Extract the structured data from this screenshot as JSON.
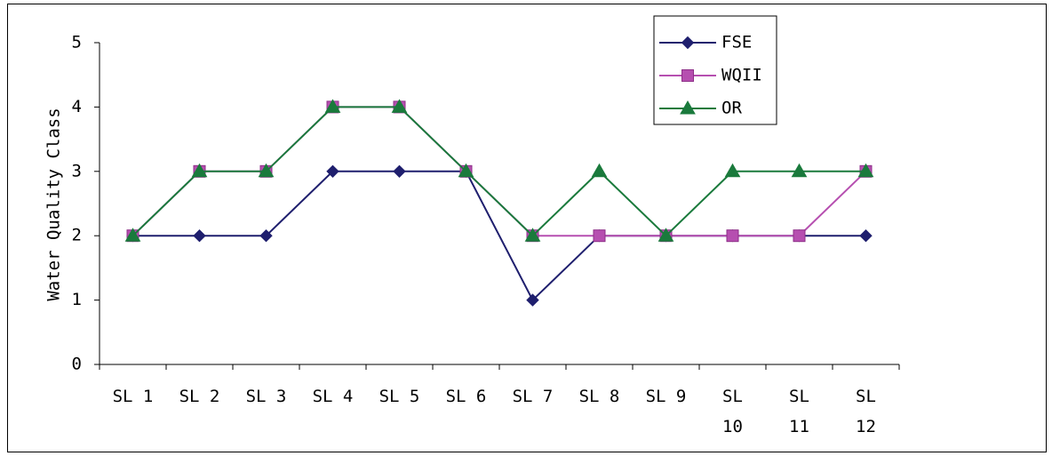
{
  "chart_data": {
    "type": "line",
    "title": "",
    "xlabel": "",
    "ylabel": "Water Quality Class",
    "ylim": [
      0,
      5
    ],
    "yticks": [
      "0",
      "1",
      "2",
      "3",
      "4",
      "5"
    ],
    "categories": [
      [
        "SL",
        "1"
      ],
      [
        "SL",
        "2"
      ],
      [
        "SL",
        "3"
      ],
      [
        "SL",
        "4"
      ],
      [
        "SL",
        "5"
      ],
      [
        "SL",
        "6"
      ],
      [
        "SL",
        "7"
      ],
      [
        "SL",
        "8"
      ],
      [
        "SL",
        "9"
      ],
      [
        "SL",
        "10"
      ],
      [
        "SL",
        "11"
      ],
      [
        "SL",
        "12"
      ]
    ],
    "grid": false,
    "legend_position": "top-right",
    "series": [
      {
        "name": "FSE",
        "marker": "diamond",
        "color": "#1f1f6e",
        "values": [
          2,
          2,
          2,
          3,
          3,
          3,
          1,
          2,
          2,
          2,
          2,
          2
        ]
      },
      {
        "name": "WQII",
        "marker": "square",
        "color": "#b64fb0",
        "values": [
          2,
          3,
          3,
          4,
          4,
          3,
          2,
          2,
          2,
          2,
          2,
          3
        ]
      },
      {
        "name": "OR",
        "marker": "triangle",
        "color": "#1a7a3c",
        "values": [
          2,
          3,
          3,
          4,
          4,
          3,
          2,
          3,
          2,
          3,
          3,
          3
        ]
      }
    ]
  }
}
